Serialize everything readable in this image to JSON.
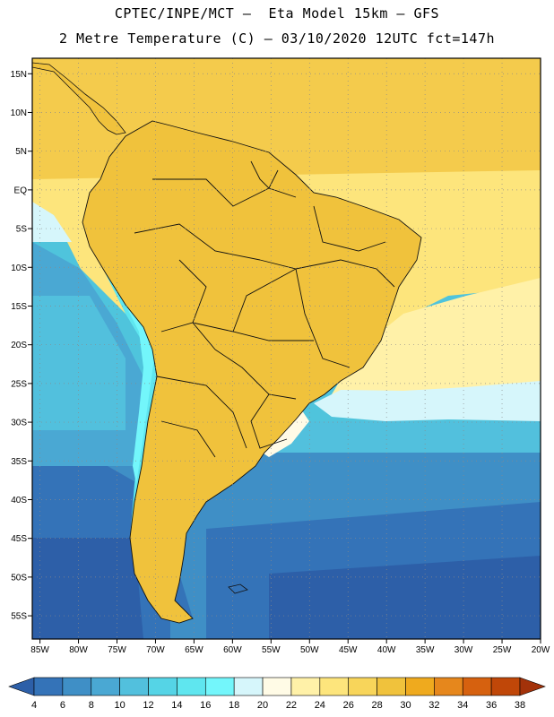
{
  "header": {
    "title_line1": "CPTEC/INPE/MCT –  Eta Model 15km – GFS",
    "title_line2": "2 Metre Temperature (C) – 03/10/2020 12UTC fct=147h"
  },
  "map": {
    "lon_labels": [
      "85W",
      "80W",
      "75W",
      "70W",
      "65W",
      "60W",
      "55W",
      "50W",
      "45W",
      "40W",
      "35W",
      "30W",
      "25W",
      "20W"
    ],
    "lat_labels": [
      "15N",
      "10N",
      "5N",
      "EQ",
      "5S",
      "10S",
      "15S",
      "20S",
      "25S",
      "30S",
      "35S",
      "40S",
      "45S",
      "50S",
      "55S"
    ],
    "lon_values": [
      -85,
      -80,
      -75,
      -70,
      -65,
      -60,
      -55,
      -50,
      -45,
      -40,
      -35,
      -30,
      -25,
      -20
    ],
    "lat_values": [
      15,
      10,
      5,
      0,
      -5,
      -10,
      -15,
      -20,
      -25,
      -30,
      -35,
      -40,
      -45,
      -50,
      -55
    ],
    "lon_range": [
      -86,
      -20
    ],
    "lat_range": [
      -58,
      17
    ],
    "grid": true
  },
  "colorbar": {
    "labels": [
      "4",
      "6",
      "8",
      "10",
      "12",
      "14",
      "16",
      "18",
      "20",
      "22",
      "24",
      "26",
      "28",
      "30",
      "32",
      "34",
      "36",
      "38"
    ],
    "colors": [
      "#2d5fa8",
      "#3473b8",
      "#3f8fc6",
      "#4aa8d3",
      "#52c0dd",
      "#55d4e6",
      "#5fe6ef",
      "#73f6fb",
      "#d6f6fb",
      "#fffbe6",
      "#fff1a8",
      "#fde57c",
      "#f8d55a",
      "#f0c23c",
      "#efaa1e",
      "#e6871c",
      "#d6610f",
      "#c04708",
      "#a3320a"
    ]
  }
}
